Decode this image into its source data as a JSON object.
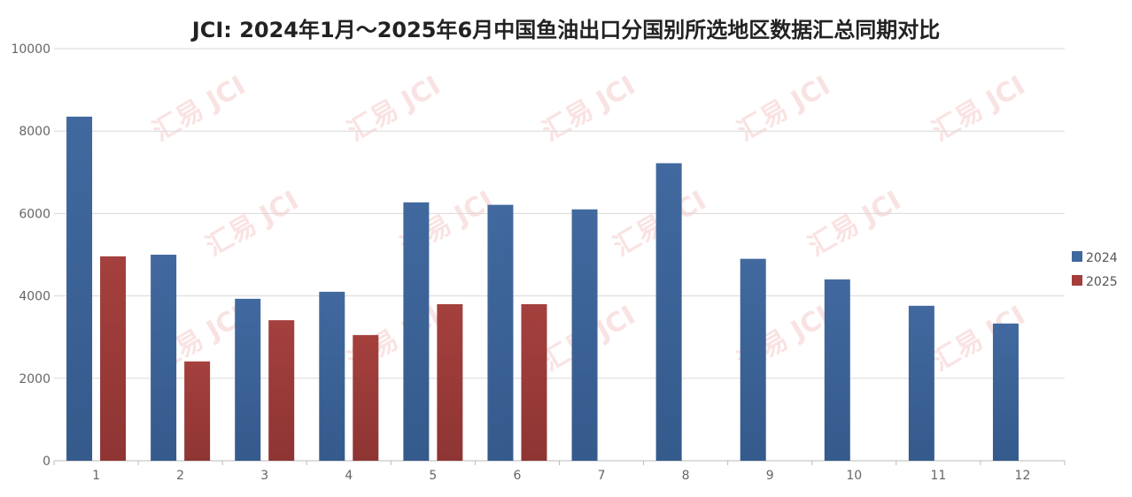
{
  "chart_data": {
    "type": "bar",
    "title": "JCI: 2024年1月～2025年6月中国鱼油出口分国别所选地区数据汇总同期对比",
    "xlabel": "",
    "ylabel": "",
    "categories": [
      "1",
      "2",
      "3",
      "4",
      "5",
      "6",
      "7",
      "8",
      "9",
      "10",
      "11",
      "12"
    ],
    "series": [
      {
        "name": "2024",
        "color": "#3f689e",
        "values": [
          8350,
          5000,
          3930,
          4100,
          6270,
          6210,
          6100,
          7220,
          4900,
          4400,
          3760,
          3330
        ]
      },
      {
        "name": "2025",
        "color": "#a33e3b",
        "values": [
          4960,
          2410,
          3410,
          3050,
          3800,
          3800,
          null,
          null,
          null,
          null,
          null,
          null
        ]
      }
    ],
    "ylim": [
      0,
      10000
    ],
    "yticks": [
      0,
      2000,
      4000,
      6000,
      8000,
      10000
    ],
    "grid": true,
    "legend_position": "right",
    "watermark": "汇易 JCI"
  }
}
